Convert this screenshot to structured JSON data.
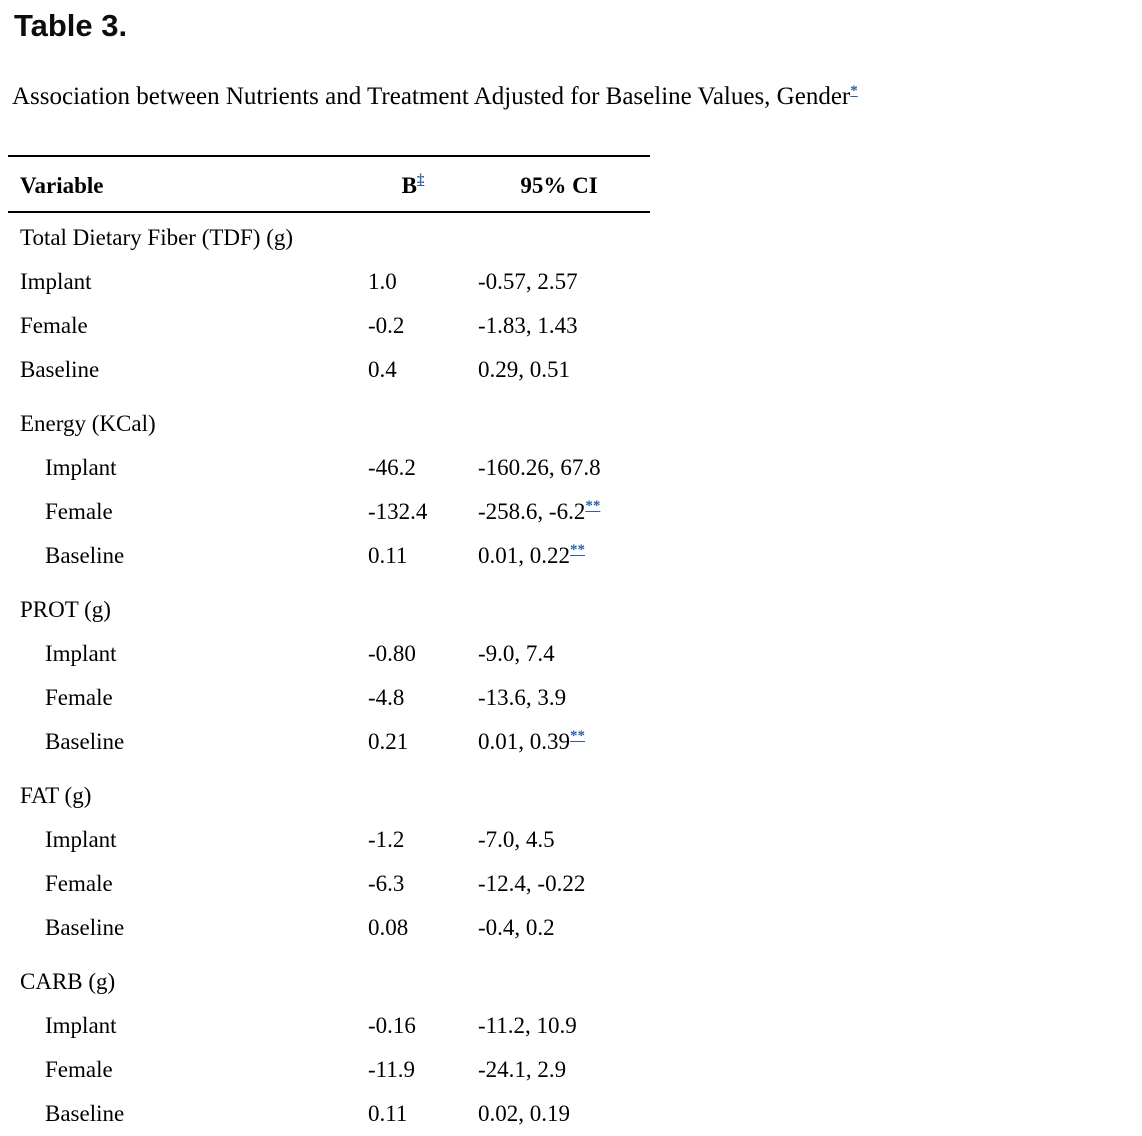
{
  "page": {
    "title": "Table 3.",
    "caption": "Association between Nutrients and Treatment Adjusted for Baseline Values, Gender",
    "caption_footnote_marker": "*"
  },
  "colors": {
    "link_blue": "#2a5fa5"
  },
  "table": {
    "columns": [
      {
        "label": "Variable"
      },
      {
        "label": "B",
        "footnote_marker": "‡"
      },
      {
        "label": "95% CI"
      }
    ],
    "sections": [
      {
        "header": "Total Dietary Fiber (TDF) (g)",
        "indented": false,
        "rows": [
          {
            "variable": "Implant",
            "b": "1.0",
            "ci": "-0.57, 2.57",
            "ci_marker": ""
          },
          {
            "variable": "Female",
            "b": "-0.2",
            "ci": "-1.83, 1.43",
            "ci_marker": ""
          },
          {
            "variable": "Baseline",
            "b": "0.4",
            "ci": "0.29, 0.51",
            "ci_marker": ""
          }
        ]
      },
      {
        "header": "Energy (KCal)",
        "indented": true,
        "rows": [
          {
            "variable": "Implant",
            "b": "-46.2",
            "ci": "-160.26, 67.8",
            "ci_marker": ""
          },
          {
            "variable": "Female",
            "b": "-132.4",
            "ci": "-258.6, -6.2",
            "ci_marker": "**"
          },
          {
            "variable": "Baseline",
            "b": "0.11",
            "ci": "0.01, 0.22",
            "ci_marker": "**"
          }
        ]
      },
      {
        "header": "PROT (g)",
        "indented": true,
        "rows": [
          {
            "variable": "Implant",
            "b": "-0.80",
            "ci": "-9.0, 7.4",
            "ci_marker": ""
          },
          {
            "variable": "Female",
            "b": "-4.8",
            "ci": "-13.6, 3.9",
            "ci_marker": ""
          },
          {
            "variable": "Baseline",
            "b": "0.21",
            "ci": "0.01, 0.39",
            "ci_marker": "**"
          }
        ]
      },
      {
        "header": "FAT (g)",
        "indented": true,
        "rows": [
          {
            "variable": "Implant",
            "b": "-1.2",
            "ci": "-7.0, 4.5",
            "ci_marker": ""
          },
          {
            "variable": "Female",
            "b": "-6.3",
            "ci": "-12.4, -0.22",
            "ci_marker": ""
          },
          {
            "variable": "Baseline",
            "b": "0.08",
            "ci": "-0.4, 0.2",
            "ci_marker": ""
          }
        ]
      },
      {
        "header": "CARB (g)",
        "indented": true,
        "rows": [
          {
            "variable": "Implant",
            "b": "-0.16",
            "ci": "-11.2, 10.9",
            "ci_marker": ""
          },
          {
            "variable": "Female",
            "b": "-11.9",
            "ci": "-24.1, 2.9",
            "ci_marker": ""
          },
          {
            "variable": "Baseline",
            "b": "0.11",
            "ci": "0.02, 0.19",
            "ci_marker": ""
          }
        ]
      }
    ]
  }
}
